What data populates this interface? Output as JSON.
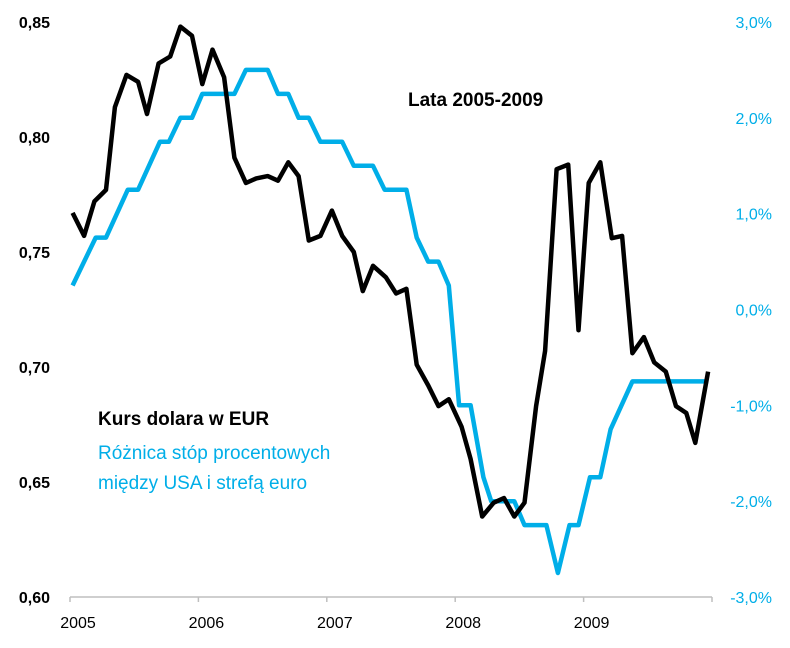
{
  "chart_data": {
    "type": "line",
    "title": "Lata 2005-2009",
    "colors": {
      "usd_eur": "#000000",
      "rate_diff": "#00aee8",
      "axis": "#bfbfbf"
    },
    "grid": false,
    "legend_placement": "bottom-left",
    "x_axis": {
      "range": [
        2005,
        2010
      ],
      "tick_labels": [
        "2005",
        "2006",
        "2007",
        "2008",
        "2009"
      ]
    },
    "y_left": {
      "range": [
        0.6,
        0.85
      ],
      "tick_labels": [
        "0,85",
        "0,80",
        "0,75",
        "0,70",
        "0,65",
        "0,60"
      ]
    },
    "y_right": {
      "range": [
        -3.0,
        3.0
      ],
      "unit": "%",
      "tick_labels": [
        "3,0%",
        "2,0%",
        "1,0%",
        "0,0%",
        "-1,0%",
        "-2,0%",
        "-3,0%"
      ]
    },
    "legend": {
      "series1_label": "Kurs dolara w EUR",
      "series2_label_line1": "Różnica stóp procentowych",
      "series2_label_line2": "między USA i strefą euro"
    },
    "series": [
      {
        "name": "Kurs dolara w EUR",
        "axis": "left",
        "x": [
          2005.02,
          2005.11,
          2005.19,
          2005.28,
          2005.35,
          2005.44,
          2005.53,
          2005.6,
          2005.69,
          2005.78,
          2005.86,
          2005.95,
          2006.03,
          2006.11,
          2006.2,
          2006.28,
          2006.37,
          2006.45,
          2006.54,
          2006.62,
          2006.7,
          2006.78,
          2006.86,
          2006.95,
          2007.04,
          2007.12,
          2007.21,
          2007.28,
          2007.36,
          2007.46,
          2007.54,
          2007.62,
          2007.7,
          2007.79,
          2007.87,
          2007.95,
          2008.05,
          2008.12,
          2008.21,
          2008.3,
          2008.38,
          2008.46,
          2008.54,
          2008.63,
          2008.7,
          2008.79,
          2008.88,
          2008.96,
          2009.04,
          2009.13,
          2009.22,
          2009.3,
          2009.38,
          2009.47,
          2009.55,
          2009.64,
          2009.72,
          2009.8,
          2009.87,
          2009.97
        ],
        "y": [
          0.767,
          0.757,
          0.772,
          0.777,
          0.813,
          0.827,
          0.824,
          0.81,
          0.832,
          0.835,
          0.848,
          0.844,
          0.823,
          0.838,
          0.826,
          0.791,
          0.78,
          0.782,
          0.783,
          0.781,
          0.789,
          0.783,
          0.755,
          0.757,
          0.768,
          0.757,
          0.75,
          0.733,
          0.744,
          0.739,
          0.732,
          0.734,
          0.701,
          0.692,
          0.683,
          0.686,
          0.674,
          0.66,
          0.635,
          0.641,
          0.643,
          0.635,
          0.641,
          0.683,
          0.707,
          0.786,
          0.788,
          0.716,
          0.78,
          0.789,
          0.756,
          0.757,
          0.706,
          0.713,
          0.702,
          0.698,
          0.683,
          0.68,
          0.667,
          0.698
        ]
      },
      {
        "name": "Różnica stóp procentowych między USA i strefą euro",
        "axis": "right",
        "x": [
          2005.02,
          2005.2,
          2005.28,
          2005.45,
          2005.53,
          2005.7,
          2005.77,
          2005.86,
          2005.95,
          2006.03,
          2006.28,
          2006.37,
          2006.54,
          2006.62,
          2006.7,
          2006.78,
          2006.86,
          2006.95,
          2007.12,
          2007.21,
          2007.36,
          2007.45,
          2007.62,
          2007.7,
          2007.79,
          2007.87,
          2007.95,
          2008.03,
          2008.12,
          2008.22,
          2008.28,
          2008.46,
          2008.54,
          2008.71,
          2008.8,
          2008.89,
          2008.96,
          2009.05,
          2009.13,
          2009.21,
          2009.38,
          2009.97
        ],
        "y": [
          0.25,
          0.75,
          0.75,
          1.25,
          1.25,
          1.75,
          1.75,
          2.0,
          2.0,
          2.25,
          2.25,
          2.5,
          2.5,
          2.25,
          2.25,
          2.0,
          2.0,
          1.75,
          1.75,
          1.5,
          1.5,
          1.25,
          1.25,
          0.75,
          0.5,
          0.5,
          0.25,
          -1.0,
          -1.0,
          -1.75,
          -2.0,
          -2.0,
          -2.25,
          -2.25,
          -2.75,
          -2.25,
          -2.25,
          -1.75,
          -1.75,
          -1.25,
          -0.75,
          -0.75
        ]
      }
    ]
  }
}
